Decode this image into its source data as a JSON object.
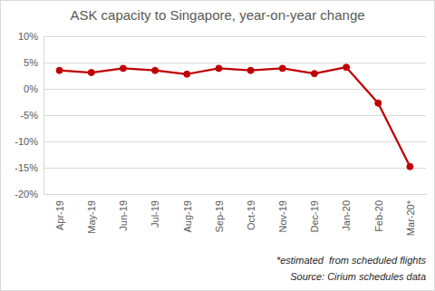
{
  "chart_data": {
    "type": "line",
    "title": "ASK capacity to Singapore, year-on-year change",
    "categories": [
      "Apr-19",
      "May-19",
      "Jun-19",
      "Jul-19",
      "Aug-19",
      "Sep-19",
      "Oct-19",
      "Nov-19",
      "Dec-19",
      "Jan-20",
      "Feb-20",
      "Mar-20*"
    ],
    "values": [
      3.5,
      3.1,
      3.9,
      3.5,
      2.8,
      3.9,
      3.5,
      3.9,
      2.9,
      4.1,
      -2.7,
      -14.8
    ],
    "color": "#c00000",
    "marker": "circle",
    "ylim": [
      -20,
      10
    ],
    "yticks": [
      {
        "value": -20,
        "label": "-20%"
      },
      {
        "value": -15,
        "label": "-15%"
      },
      {
        "value": -10,
        "label": "-10%"
      },
      {
        "value": -5,
        "label": "-5%"
      },
      {
        "value": 0,
        "label": "0%"
      },
      {
        "value": 5,
        "label": "5%"
      },
      {
        "value": 10,
        "label": "10%"
      }
    ],
    "grid": true,
    "annotations": [
      "*estimated  from scheduled flights",
      "Source: Cirium schedules data"
    ]
  }
}
